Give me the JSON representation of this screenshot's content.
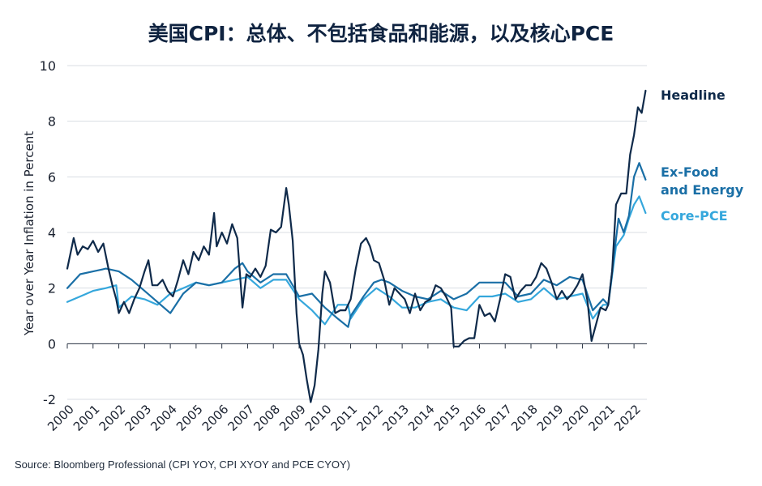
{
  "chart_data": {
    "type": "line",
    "title": "美国CPI：总体、不包括食品和能源，以及核心PCE",
    "xlabel": "",
    "ylabel": "Year over Year Inflation in Percent",
    "ylim": [
      -2,
      10
    ],
    "yticks": [
      "10",
      "8",
      "6",
      "4",
      "2",
      "0",
      "-2"
    ],
    "xlim": [
      2000,
      2022.5
    ],
    "xticks": [
      "2000",
      "2001",
      "2002",
      "2003",
      "2004",
      "2005",
      "2006",
      "2007",
      "2008",
      "2009",
      "2010",
      "2011",
      "2012",
      "2013",
      "2014",
      "2015",
      "2016",
      "2017",
      "2018",
      "2019",
      "2020",
      "2021",
      "2022"
    ],
    "grid": true,
    "legend": "right, labels at line ends",
    "series": [
      {
        "name": "Headline",
        "color": "#0f2a4a",
        "x": [
          2000,
          2000.25,
          2000.4,
          2000.6,
          2000.8,
          2001.0,
          2001.2,
          2001.4,
          2001.6,
          2001.75,
          2001.9,
          2002.0,
          2002.2,
          2002.4,
          2002.6,
          2002.8,
          2003.0,
          2003.15,
          2003.3,
          2003.5,
          2003.7,
          2003.9,
          2004.1,
          2004.3,
          2004.5,
          2004.7,
          2004.9,
          2005.1,
          2005.3,
          2005.5,
          2005.7,
          2005.8,
          2006.0,
          2006.2,
          2006.4,
          2006.6,
          2006.8,
          2006.95,
          2007.1,
          2007.3,
          2007.5,
          2007.7,
          2007.9,
          2008.1,
          2008.3,
          2008.5,
          2008.6,
          2008.75,
          2008.9,
          2009.0,
          2009.15,
          2009.3,
          2009.45,
          2009.6,
          2009.75,
          2009.9,
          2010.0,
          2010.2,
          2010.4,
          2010.6,
          2010.8,
          2011.0,
          2011.2,
          2011.4,
          2011.6,
          2011.75,
          2011.9,
          2012.1,
          2012.3,
          2012.5,
          2012.7,
          2012.9,
          2013.1,
          2013.3,
          2013.5,
          2013.7,
          2013.9,
          2014.1,
          2014.3,
          2014.5,
          2014.7,
          2014.9,
          2015.0,
          2015.2,
          2015.4,
          2015.6,
          2015.8,
          2016.0,
          2016.2,
          2016.4,
          2016.6,
          2016.8,
          2017.0,
          2017.2,
          2017.4,
          2017.6,
          2017.8,
          2018.0,
          2018.2,
          2018.4,
          2018.6,
          2018.8,
          2019.0,
          2019.2,
          2019.4,
          2019.6,
          2019.8,
          2020.0,
          2020.2,
          2020.35,
          2020.5,
          2020.7,
          2020.9,
          2021.0,
          2021.15,
          2021.3,
          2021.5,
          2021.7,
          2021.85,
          2022.0,
          2022.15,
          2022.3,
          2022.45
        ],
        "values": [
          2.7,
          3.8,
          3.2,
          3.5,
          3.4,
          3.7,
          3.3,
          3.6,
          2.7,
          2.1,
          1.6,
          1.1,
          1.5,
          1.1,
          1.6,
          2.0,
          2.6,
          3.0,
          2.1,
          2.1,
          2.3,
          1.9,
          1.7,
          2.3,
          3.0,
          2.5,
          3.3,
          3.0,
          3.5,
          3.2,
          4.7,
          3.5,
          4.0,
          3.6,
          4.3,
          3.8,
          1.3,
          2.5,
          2.4,
          2.7,
          2.4,
          2.8,
          4.1,
          4.0,
          4.2,
          5.6,
          5.0,
          3.7,
          1.1,
          0.0,
          -0.4,
          -1.3,
          -2.1,
          -1.5,
          -0.2,
          1.8,
          2.6,
          2.2,
          1.1,
          1.2,
          1.2,
          1.6,
          2.7,
          3.6,
          3.8,
          3.5,
          3.0,
          2.9,
          2.3,
          1.4,
          2.0,
          1.8,
          1.6,
          1.1,
          1.8,
          1.2,
          1.5,
          1.6,
          2.1,
          2.0,
          1.7,
          1.3,
          -0.1,
          -0.1,
          0.1,
          0.2,
          0.2,
          1.4,
          1.0,
          1.1,
          0.8,
          1.6,
          2.5,
          2.4,
          1.6,
          1.9,
          2.1,
          2.1,
          2.4,
          2.9,
          2.7,
          2.2,
          1.6,
          1.9,
          1.6,
          1.8,
          2.1,
          2.5,
          1.5,
          0.1,
          0.6,
          1.3,
          1.2,
          1.4,
          2.6,
          5.0,
          5.4,
          5.4,
          6.8,
          7.5,
          8.5,
          8.3,
          9.1
        ]
      },
      {
        "name": "Ex-Food and Energy",
        "color": "#1a6fa6",
        "x": [
          2000,
          2000.5,
          2001.0,
          2001.5,
          2002.0,
          2002.5,
          2003.0,
          2003.5,
          2004.0,
          2004.5,
          2005.0,
          2005.5,
          2006.0,
          2006.5,
          2006.8,
          2007.0,
          2007.5,
          2008.0,
          2008.5,
          2009.0,
          2009.5,
          2010.0,
          2010.5,
          2010.9,
          2011.0,
          2011.5,
          2011.9,
          2012.2,
          2012.5,
          2013.0,
          2013.5,
          2014.0,
          2014.5,
          2015.0,
          2015.5,
          2016.0,
          2016.5,
          2017.0,
          2017.5,
          2018.0,
          2018.5,
          2019.0,
          2019.5,
          2020.0,
          2020.4,
          2020.8,
          2021.0,
          2021.2,
          2021.4,
          2021.6,
          2021.8,
          2022.0,
          2022.2,
          2022.45
        ],
        "values": [
          2.0,
          2.5,
          2.6,
          2.7,
          2.6,
          2.3,
          1.9,
          1.5,
          1.1,
          1.8,
          2.2,
          2.1,
          2.2,
          2.7,
          2.9,
          2.6,
          2.2,
          2.5,
          2.5,
          1.7,
          1.8,
          1.3,
          0.9,
          0.6,
          1.0,
          1.7,
          2.2,
          2.3,
          2.2,
          1.9,
          1.7,
          1.6,
          1.9,
          1.6,
          1.8,
          2.2,
          2.2,
          2.2,
          1.7,
          1.8,
          2.3,
          2.1,
          2.4,
          2.3,
          1.2,
          1.6,
          1.4,
          3.0,
          4.5,
          4.0,
          4.6,
          6.0,
          6.5,
          5.9
        ]
      },
      {
        "name": "Core-PCE",
        "color": "#35a7dc",
        "x": [
          2000,
          2000.5,
          2001.0,
          2001.5,
          2001.9,
          2002.0,
          2002.5,
          2003.0,
          2003.5,
          2004.0,
          2004.5,
          2005.0,
          2005.5,
          2006.0,
          2006.5,
          2007.0,
          2007.5,
          2008.0,
          2008.5,
          2009.0,
          2009.5,
          2010.0,
          2010.5,
          2010.9,
          2011.0,
          2011.5,
          2012.0,
          2012.5,
          2013.0,
          2013.5,
          2014.0,
          2014.5,
          2015.0,
          2015.5,
          2016.0,
          2016.5,
          2017.0,
          2017.5,
          2018.0,
          2018.5,
          2019.0,
          2019.5,
          2020.0,
          2020.4,
          2020.8,
          2021.0,
          2021.3,
          2021.6,
          2021.8,
          2022.0,
          2022.2,
          2022.45
        ],
        "values": [
          1.5,
          1.7,
          1.9,
          2.0,
          2.1,
          1.3,
          1.7,
          1.6,
          1.4,
          1.8,
          2.0,
          2.2,
          2.1,
          2.2,
          2.3,
          2.4,
          2.0,
          2.3,
          2.3,
          1.6,
          1.2,
          0.7,
          1.4,
          1.4,
          0.9,
          1.6,
          2.0,
          1.7,
          1.3,
          1.3,
          1.5,
          1.6,
          1.3,
          1.2,
          1.7,
          1.7,
          1.8,
          1.5,
          1.6,
          2.0,
          1.6,
          1.7,
          1.8,
          0.9,
          1.4,
          1.4,
          3.5,
          3.9,
          4.5,
          5.0,
          5.3,
          4.7
        ]
      }
    ],
    "legend_lines": {
      "headline": [
        "Headline"
      ],
      "exfood": [
        "Ex-Food",
        "and Energy"
      ],
      "corepce": [
        "Core-PCE"
      ]
    }
  },
  "source": "Source: Bloomberg Professional (CPI YOY, CPI XYOY and PCE CYOY)"
}
